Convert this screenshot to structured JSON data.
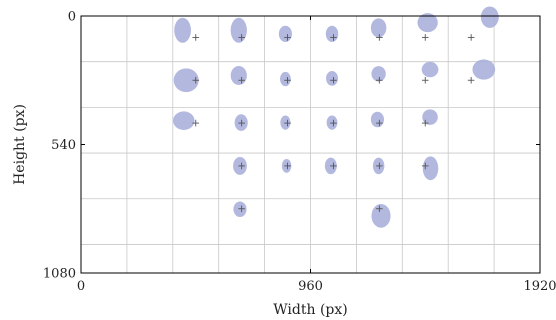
{
  "chart_data": {
    "type": "scatter",
    "title": "",
    "xlabel": "Width (px)",
    "ylabel": "Height (px)",
    "xlim": [
      0,
      1920
    ],
    "ylim": [
      0,
      1080
    ],
    "y_inverted": true,
    "grid": true,
    "grid_step": 192,
    "x_ticks": [
      0,
      960,
      1920
    ],
    "x_tick_labels": [
      "0",
      "960",
      "1920"
    ],
    "y_ticks": [
      0,
      540,
      1080
    ],
    "y_tick_labels": [
      "0",
      "540",
      "1080"
    ],
    "colors": {
      "ellipse": "#a6abd9",
      "marker": "#555555",
      "grid": "#c8c8c8",
      "axis": "#000000"
    },
    "markers": [
      {
        "x": 480,
        "y": 90
      },
      {
        "x": 672,
        "y": 90
      },
      {
        "x": 864,
        "y": 90
      },
      {
        "x": 1056,
        "y": 90
      },
      {
        "x": 1248,
        "y": 90
      },
      {
        "x": 1440,
        "y": 90
      },
      {
        "x": 1632,
        "y": 90
      },
      {
        "x": 480,
        "y": 270
      },
      {
        "x": 672,
        "y": 270
      },
      {
        "x": 864,
        "y": 270
      },
      {
        "x": 1056,
        "y": 270
      },
      {
        "x": 1248,
        "y": 270
      },
      {
        "x": 1440,
        "y": 270
      },
      {
        "x": 1632,
        "y": 270
      },
      {
        "x": 480,
        "y": 450
      },
      {
        "x": 672,
        "y": 450
      },
      {
        "x": 864,
        "y": 450
      },
      {
        "x": 1056,
        "y": 450
      },
      {
        "x": 1248,
        "y": 450
      },
      {
        "x": 1440,
        "y": 450
      },
      {
        "x": 672,
        "y": 630
      },
      {
        "x": 864,
        "y": 630
      },
      {
        "x": 1056,
        "y": 630
      },
      {
        "x": 1248,
        "y": 630
      },
      {
        "x": 1440,
        "y": 630
      },
      {
        "x": 672,
        "y": 810
      },
      {
        "x": 1248,
        "y": 810
      }
    ],
    "ellipses": [
      {
        "cx": 425,
        "cy": 60,
        "w": 70,
        "h": 105
      },
      {
        "cx": 660,
        "cy": 60,
        "w": 68,
        "h": 105
      },
      {
        "cx": 855,
        "cy": 75,
        "w": 55,
        "h": 68
      },
      {
        "cx": 1050,
        "cy": 75,
        "w": 52,
        "h": 68
      },
      {
        "cx": 1245,
        "cy": 50,
        "w": 65,
        "h": 80
      },
      {
        "cx": 1450,
        "cy": 28,
        "w": 85,
        "h": 80
      },
      {
        "cx": 1710,
        "cy": 5,
        "w": 75,
        "h": 90
      },
      {
        "cx": 440,
        "cy": 270,
        "w": 105,
        "h": 100
      },
      {
        "cx": 660,
        "cy": 250,
        "w": 68,
        "h": 80
      },
      {
        "cx": 855,
        "cy": 265,
        "w": 45,
        "h": 60
      },
      {
        "cx": 1050,
        "cy": 262,
        "w": 50,
        "h": 62
      },
      {
        "cx": 1245,
        "cy": 243,
        "w": 60,
        "h": 65
      },
      {
        "cx": 1460,
        "cy": 225,
        "w": 70,
        "h": 65
      },
      {
        "cx": 1685,
        "cy": 225,
        "w": 95,
        "h": 85
      },
      {
        "cx": 430,
        "cy": 440,
        "w": 90,
        "h": 78
      },
      {
        "cx": 670,
        "cy": 448,
        "w": 55,
        "h": 70
      },
      {
        "cx": 855,
        "cy": 448,
        "w": 42,
        "h": 60
      },
      {
        "cx": 1050,
        "cy": 448,
        "w": 45,
        "h": 60
      },
      {
        "cx": 1240,
        "cy": 435,
        "w": 55,
        "h": 65
      },
      {
        "cx": 1460,
        "cy": 425,
        "w": 65,
        "h": 65
      },
      {
        "cx": 665,
        "cy": 630,
        "w": 58,
        "h": 75
      },
      {
        "cx": 860,
        "cy": 630,
        "w": 40,
        "h": 58
      },
      {
        "cx": 1045,
        "cy": 630,
        "w": 50,
        "h": 70
      },
      {
        "cx": 1245,
        "cy": 630,
        "w": 48,
        "h": 70
      },
      {
        "cx": 1462,
        "cy": 640,
        "w": 65,
        "h": 100
      },
      {
        "cx": 665,
        "cy": 812,
        "w": 55,
        "h": 65
      },
      {
        "cx": 1255,
        "cy": 840,
        "w": 80,
        "h": 100
      }
    ]
  }
}
